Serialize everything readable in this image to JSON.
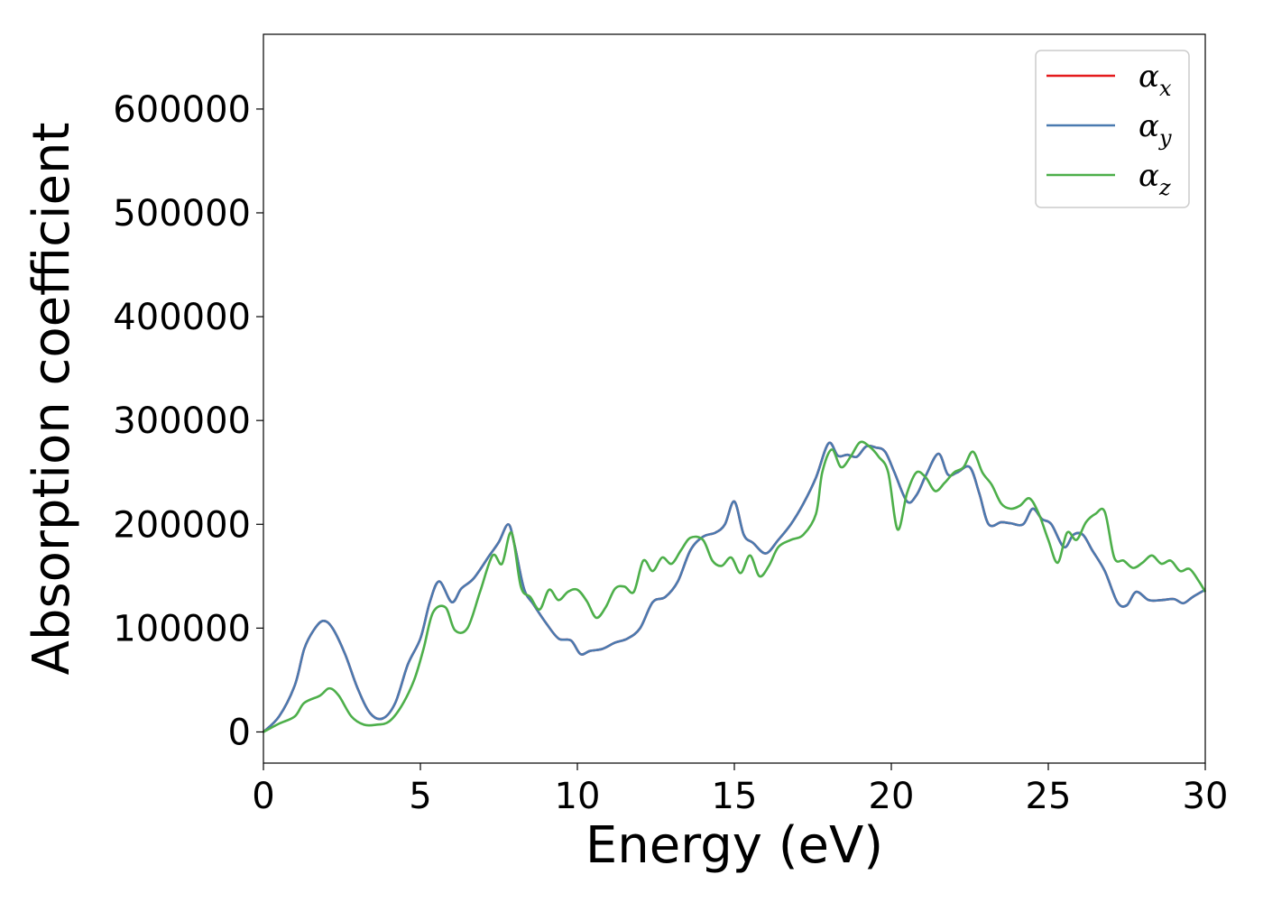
{
  "chart_data": {
    "type": "line",
    "xlabel": "Energy (eV)",
    "ylabel": "Absorption coefficient",
    "xlim": [
      0,
      30
    ],
    "ylim": [
      -30000,
      672000
    ],
    "xticks": [
      0,
      5,
      10,
      15,
      20,
      25,
      30
    ],
    "yticks": [
      0,
      100000,
      200000,
      300000,
      400000,
      500000,
      600000
    ],
    "grid": false,
    "legend_position": "top-right",
    "series": [
      {
        "name": "α_x",
        "label_main": "α",
        "label_sub": "x",
        "color": "#e41a1c",
        "x": [
          0,
          0.5,
          1.0,
          1.3,
          1.6,
          1.9,
          2.2,
          2.6,
          3.0,
          3.4,
          3.8,
          4.2,
          4.6,
          5.0,
          5.3,
          5.6,
          6.0,
          6.3,
          6.7,
          7.2,
          7.5,
          7.8,
          8.0,
          8.3,
          8.6,
          9.0,
          9.4,
          9.8,
          10.1,
          10.4,
          10.8,
          11.2,
          11.6,
          12.0,
          12.4,
          12.8,
          13.2,
          13.6,
          14.0,
          14.4,
          14.7,
          15.0,
          15.3,
          15.6,
          16.0,
          16.4,
          16.8,
          17.2,
          17.6,
          18.0,
          18.3,
          18.6,
          18.9,
          19.2,
          19.5,
          19.8,
          20.1,
          20.5,
          20.8,
          21.1,
          21.5,
          21.8,
          22.1,
          22.5,
          22.8,
          23.1,
          23.5,
          23.8,
          24.2,
          24.5,
          24.8,
          25.1,
          25.5,
          25.8,
          26.1,
          26.4,
          26.8,
          27.2,
          27.5,
          27.8,
          28.2,
          28.6,
          29.0,
          29.3,
          29.6,
          30.0
        ],
        "y": [
          0,
          15000,
          45000,
          80000,
          98000,
          107000,
          100000,
          75000,
          42000,
          18000,
          13000,
          28000,
          65000,
          90000,
          125000,
          145000,
          125000,
          138000,
          148000,
          170000,
          183000,
          200000,
          180000,
          138000,
          123000,
          105000,
          90000,
          88000,
          75000,
          78000,
          80000,
          86000,
          90000,
          100000,
          125000,
          130000,
          145000,
          175000,
          188000,
          192000,
          200000,
          222000,
          190000,
          182000,
          172000,
          185000,
          200000,
          220000,
          245000,
          278000,
          266000,
          267000,
          265000,
          275000,
          274000,
          270000,
          250000,
          222000,
          228000,
          247000,
          268000,
          248000,
          250000,
          255000,
          230000,
          200000,
          202000,
          201000,
          200000,
          215000,
          205000,
          200000,
          178000,
          190000,
          190000,
          175000,
          155000,
          125000,
          122000,
          135000,
          127000,
          127000,
          128000,
          124000,
          130000,
          137000
        ]
      },
      {
        "name": "α_y",
        "label_main": "α",
        "label_sub": "y",
        "color": "#4a7ab0",
        "x": [
          0,
          0.5,
          1.0,
          1.3,
          1.6,
          1.9,
          2.2,
          2.6,
          3.0,
          3.4,
          3.8,
          4.2,
          4.6,
          5.0,
          5.3,
          5.6,
          6.0,
          6.3,
          6.7,
          7.2,
          7.5,
          7.8,
          8.0,
          8.3,
          8.6,
          9.0,
          9.4,
          9.8,
          10.1,
          10.4,
          10.8,
          11.2,
          11.6,
          12.0,
          12.4,
          12.8,
          13.2,
          13.6,
          14.0,
          14.4,
          14.7,
          15.0,
          15.3,
          15.6,
          16.0,
          16.4,
          16.8,
          17.2,
          17.6,
          18.0,
          18.3,
          18.6,
          18.9,
          19.2,
          19.5,
          19.8,
          20.1,
          20.5,
          20.8,
          21.1,
          21.5,
          21.8,
          22.1,
          22.5,
          22.8,
          23.1,
          23.5,
          23.8,
          24.2,
          24.5,
          24.8,
          25.1,
          25.5,
          25.8,
          26.1,
          26.4,
          26.8,
          27.2,
          27.5,
          27.8,
          28.2,
          28.6,
          29.0,
          29.3,
          29.6,
          30.0
        ],
        "y": [
          0,
          15000,
          45000,
          80000,
          98000,
          107000,
          100000,
          75000,
          42000,
          18000,
          13000,
          28000,
          65000,
          90000,
          125000,
          145000,
          125000,
          138000,
          148000,
          170000,
          183000,
          200000,
          180000,
          138000,
          123000,
          105000,
          90000,
          88000,
          75000,
          78000,
          80000,
          86000,
          90000,
          100000,
          125000,
          130000,
          145000,
          175000,
          188000,
          192000,
          200000,
          222000,
          190000,
          182000,
          172000,
          185000,
          200000,
          220000,
          245000,
          278000,
          266000,
          267000,
          265000,
          275000,
          274000,
          270000,
          250000,
          222000,
          228000,
          247000,
          268000,
          248000,
          250000,
          255000,
          230000,
          200000,
          202000,
          201000,
          200000,
          215000,
          205000,
          200000,
          178000,
          190000,
          190000,
          175000,
          155000,
          125000,
          122000,
          135000,
          127000,
          127000,
          128000,
          124000,
          130000,
          137000
        ]
      },
      {
        "name": "α_z",
        "label_main": "α",
        "label_sub": "z",
        "color": "#4daf4a",
        "x": [
          0,
          0.5,
          1.0,
          1.3,
          1.8,
          2.1,
          2.4,
          2.8,
          3.2,
          3.6,
          4.0,
          4.4,
          4.8,
          5.1,
          5.4,
          5.8,
          6.1,
          6.5,
          6.9,
          7.3,
          7.6,
          7.9,
          8.2,
          8.5,
          8.8,
          9.1,
          9.4,
          9.7,
          10.0,
          10.3,
          10.6,
          10.9,
          11.2,
          11.5,
          11.8,
          12.1,
          12.4,
          12.7,
          13.0,
          13.3,
          13.6,
          14.0,
          14.3,
          14.6,
          14.9,
          15.2,
          15.5,
          15.8,
          16.1,
          16.4,
          16.8,
          17.2,
          17.6,
          17.8,
          18.1,
          18.4,
          18.7,
          19.0,
          19.3,
          19.6,
          19.9,
          20.2,
          20.5,
          20.8,
          21.1,
          21.4,
          21.7,
          22.0,
          22.3,
          22.6,
          22.9,
          23.2,
          23.5,
          23.8,
          24.1,
          24.4,
          24.7,
          25.0,
          25.3,
          25.6,
          25.9,
          26.2,
          26.5,
          26.8,
          27.1,
          27.4,
          27.7,
          28.0,
          28.3,
          28.6,
          28.9,
          29.2,
          29.5,
          29.8,
          30.0
        ],
        "y": [
          0,
          8000,
          15000,
          28000,
          35000,
          42000,
          35000,
          15000,
          7000,
          7000,
          10000,
          25000,
          50000,
          80000,
          115000,
          120000,
          98000,
          100000,
          135000,
          170000,
          162000,
          192000,
          140000,
          130000,
          118000,
          137000,
          127000,
          135000,
          137000,
          126000,
          110000,
          120000,
          138000,
          140000,
          135000,
          165000,
          155000,
          168000,
          162000,
          175000,
          187000,
          185000,
          165000,
          160000,
          168000,
          153000,
          170000,
          150000,
          160000,
          178000,
          185000,
          190000,
          210000,
          250000,
          272000,
          255000,
          265000,
          279000,
          275000,
          265000,
          250000,
          195000,
          230000,
          250000,
          245000,
          232000,
          240000,
          250000,
          255000,
          270000,
          250000,
          238000,
          220000,
          215000,
          218000,
          225000,
          210000,
          185000,
          163000,
          192000,
          185000,
          202000,
          210000,
          212000,
          168000,
          165000,
          158000,
          163000,
          170000,
          162000,
          165000,
          155000,
          157000,
          145000,
          135000
        ]
      }
    ]
  }
}
